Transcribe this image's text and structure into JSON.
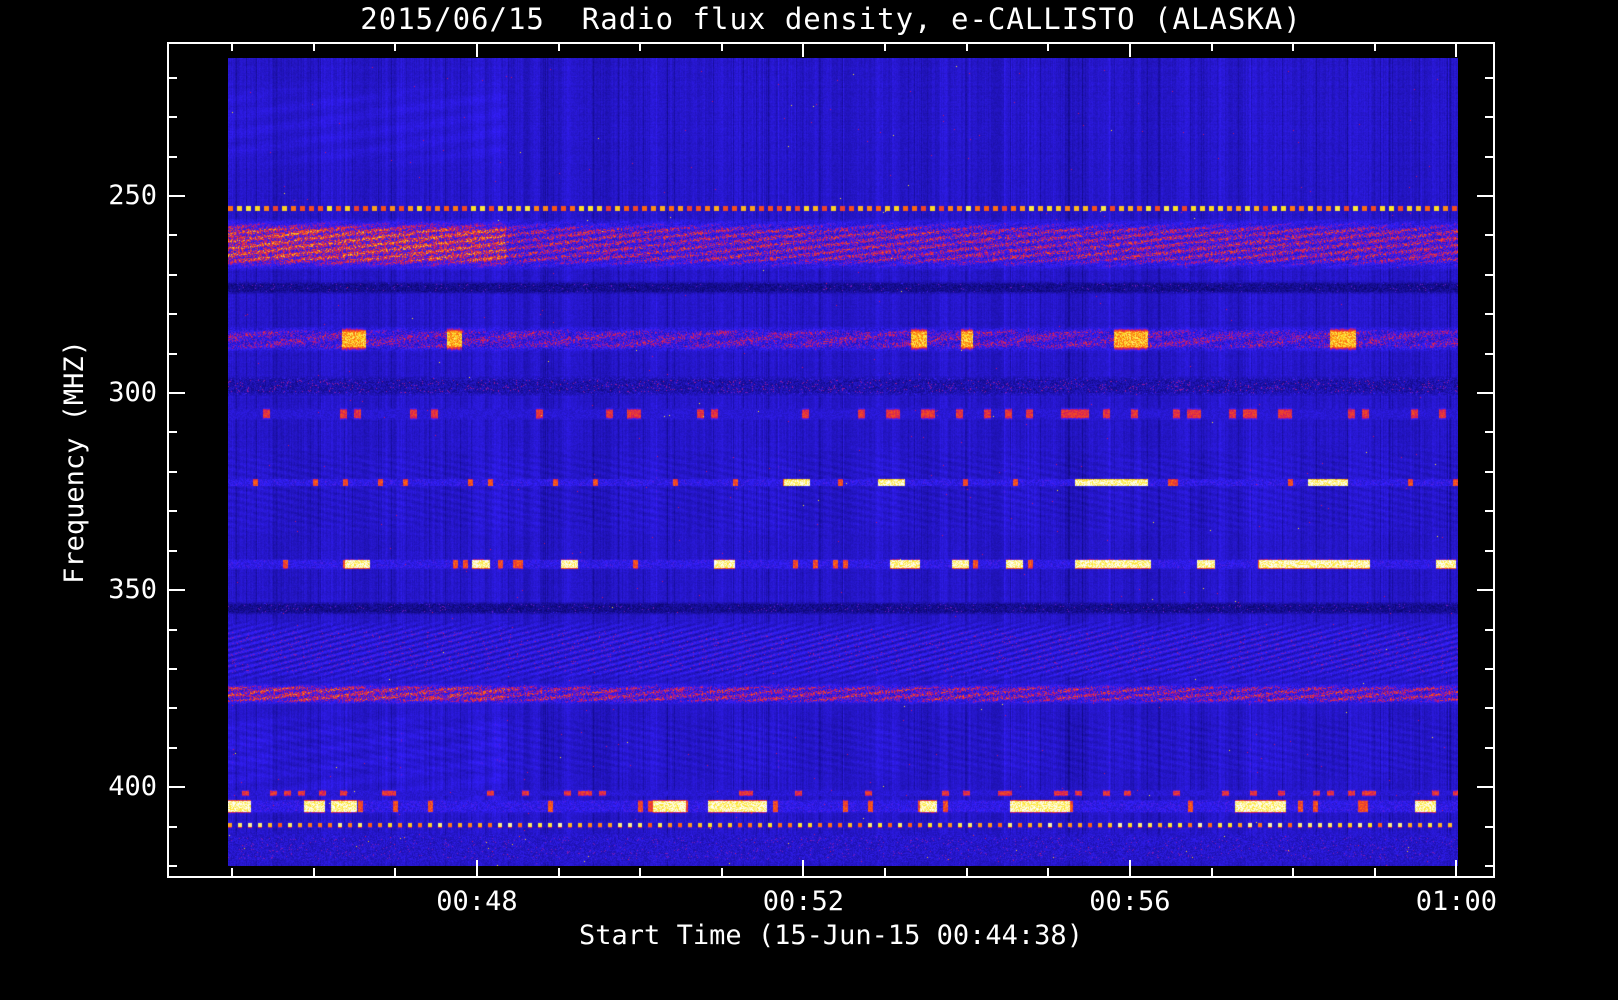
{
  "page": {
    "background": "#000000",
    "foreground": "#ffffff"
  },
  "chart_data": {
    "type": "heatmap",
    "title": "2015/06/15  Radio flux density, e-CALLISTO (ALASKA)",
    "date": "2015/06/15",
    "station": "e-CALLISTO (ALASKA)",
    "xlabel": "Start Time (15-Jun-15 00:44:38)",
    "ylabel": "Frequency (MHZ)",
    "x_axis": {
      "unit": "minutes after 00:00 UT",
      "range": [
        44.95,
        60.02
      ],
      "major_ticks": [
        {
          "minute": 48,
          "label": "00:48"
        },
        {
          "minute": 52,
          "label": "00:52"
        },
        {
          "minute": 56,
          "label": "00:56"
        },
        {
          "minute": 60,
          "label": "01:00"
        }
      ],
      "minor_step_minutes": 1
    },
    "y_axis": {
      "unit": "MHz",
      "range": [
        215,
        420
      ],
      "major_ticks": [
        250,
        300,
        350,
        400
      ],
      "minor_step": 10,
      "inverted": true
    },
    "palette": {
      "background_blue": "#2518d0",
      "interference_red": "#cc2200",
      "burst_orange": "#f07018",
      "burst_yellow": "#ffcc20",
      "burst_white": "#ffffff",
      "dark_band": "#080464"
    },
    "background_level": 0.33,
    "left_region_end_minute": 48.35,
    "bands": [
      {
        "type": "faintleft",
        "f0": 220,
        "f1": 244,
        "note": "faint reddish smudges before ~00:48"
      },
      {
        "type": "hatchlight",
        "f0": 312,
        "f1": 338
      },
      {
        "type": "hatchlight",
        "f0": 381,
        "f1": 399
      },
      {
        "type": "faintleft",
        "f0": 378,
        "f1": 408
      },
      {
        "type": "redtexture",
        "f0": 255.5,
        "f1": 269,
        "left_boost": 0.1,
        "note": "broadband RFI, strongest before 00:48:20"
      },
      {
        "type": "dark",
        "f0": 271.5,
        "f1": 274.8
      },
      {
        "type": "redblotch",
        "f0": 283,
        "f1": 289.5,
        "bursts_min": [
          [
            46.34,
            46.64
          ],
          [
            47.63,
            47.81
          ],
          [
            53.31,
            53.51
          ],
          [
            53.92,
            54.07
          ],
          [
            55.8,
            56.22
          ],
          [
            58.44,
            58.76
          ]
        ]
      },
      {
        "type": "darkspeckle",
        "f0": 295.5,
        "f1": 300.8
      },
      {
        "type": "reddash",
        "f0": 303.5,
        "f1": 306.8
      },
      {
        "type": "burstline",
        "f0": 321.6,
        "f1": 323.6,
        "bursts_min": [
          [
            51.76,
            52.07
          ],
          [
            52.91,
            53.24
          ],
          [
            55.32,
            56.21
          ],
          [
            58.18,
            58.67
          ]
        ]
      },
      {
        "type": "burstline",
        "f0": 342,
        "f1": 344.6,
        "bursts_min": [
          [
            46.38,
            46.68
          ],
          [
            47.93,
            48.15
          ],
          [
            49.02,
            49.23
          ],
          [
            50.9,
            51.16
          ],
          [
            53.06,
            53.42
          ],
          [
            53.81,
            54.02
          ],
          [
            54.47,
            54.69
          ],
          [
            55.32,
            56.25
          ],
          [
            56.82,
            57.04
          ],
          [
            57.58,
            58.93
          ],
          [
            59.75,
            59.99
          ]
        ]
      },
      {
        "type": "dark",
        "f0": 352.8,
        "f1": 356.2
      },
      {
        "type": "hatch",
        "f0": 357,
        "f1": 374
      },
      {
        "type": "redtexture",
        "f0": 373.5,
        "f1": 379,
        "left_boost": 0.05
      },
      {
        "type": "reddash",
        "f0": 400.5,
        "f1": 402.3
      },
      {
        "type": "burstline",
        "f0": 403,
        "f1": 406.5,
        "bursts_min": [
          [
            44.95,
            45.22
          ],
          [
            45.88,
            46.13
          ],
          [
            46.2,
            46.52
          ],
          [
            50.15,
            50.56
          ],
          [
            50.83,
            51.55
          ],
          [
            53.42,
            53.63
          ],
          [
            54.53,
            55.26
          ],
          [
            57.28,
            57.91
          ],
          [
            59.49,
            59.75
          ]
        ]
      },
      {
        "type": "dotline",
        "f0": 252.3,
        "f1": 253.8,
        "period": 9,
        "duty": 0.45,
        "level": 0.8
      },
      {
        "type": "dotline",
        "f0": 408.8,
        "f1": 410.2,
        "period": 10,
        "duty": 0.35,
        "level": 0.85
      },
      {
        "type": "bottomnoise",
        "f0": 410.8,
        "f1": 420
      }
    ]
  }
}
